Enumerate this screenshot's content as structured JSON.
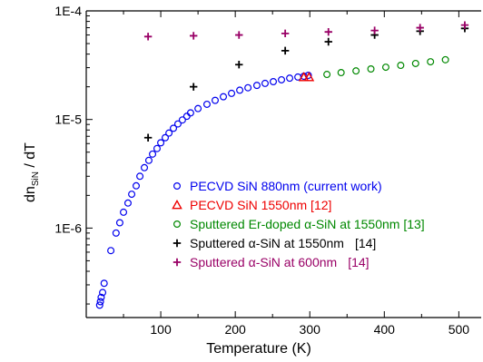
{
  "chart_data": {
    "type": "scatter",
    "title": "",
    "xlabel": "Temperature (K)",
    "ylabel_main": "dn",
    "ylabel_sub": "SiN",
    "ylabel_tail": " / dT",
    "xlim": [
      0,
      530
    ],
    "ylim": [
      1.5e-07,
      0.0001
    ],
    "yscale": "log",
    "x_ticks": [
      100,
      200,
      300,
      400,
      500
    ],
    "y_ticks": [
      {
        "value": 1e-06,
        "label": "1E-6"
      },
      {
        "value": 1e-05,
        "label": "1E-5"
      },
      {
        "value": 0.0001,
        "label": "1E-4"
      }
    ],
    "grid": false,
    "legend_position": "center-right",
    "series": [
      {
        "name": "PECVD SiN 880nm (current work)",
        "marker": "circle",
        "color": "#0000ee",
        "points": [
          [
            18,
            1.95e-07
          ],
          [
            19,
            2.1e-07
          ],
          [
            20,
            2.3e-07
          ],
          [
            22,
            2.55e-07
          ],
          [
            24,
            3.1e-07
          ],
          [
            33,
            6.2e-07
          ],
          [
            40,
            9e-07
          ],
          [
            45,
            1.12e-06
          ],
          [
            50,
            1.4e-06
          ],
          [
            56,
            1.7e-06
          ],
          [
            61,
            2.05e-06
          ],
          [
            67,
            2.45e-06
          ],
          [
            72,
            3e-06
          ],
          [
            78,
            3.6e-06
          ],
          [
            84,
            4.2e-06
          ],
          [
            89,
            4.8e-06
          ],
          [
            95,
            5.4e-06
          ],
          [
            100,
            6.1e-06
          ],
          [
            106,
            6.8e-06
          ],
          [
            111,
            7.5e-06
          ],
          [
            117,
            8.3e-06
          ],
          [
            123,
            9.1e-06
          ],
          [
            129,
            9.9e-06
          ],
          [
            135,
            1.07e-05
          ],
          [
            140,
            1.15e-05
          ],
          [
            150,
            1.26e-05
          ],
          [
            162,
            1.38e-05
          ],
          [
            173,
            1.5e-05
          ],
          [
            184,
            1.62e-05
          ],
          [
            195,
            1.74e-05
          ],
          [
            206,
            1.86e-05
          ],
          [
            217,
            1.96e-05
          ],
          [
            229,
            2.06e-05
          ],
          [
            240,
            2.15e-05
          ],
          [
            251,
            2.23e-05
          ],
          [
            262,
            2.32e-05
          ],
          [
            273,
            2.4e-05
          ],
          [
            284,
            2.46e-05
          ],
          [
            292,
            2.5e-05
          ],
          [
            298,
            2.55e-05
          ]
        ]
      },
      {
        "name": "PECVD SiN 1550nm [12]",
        "marker": "triangle",
        "color": "#ee0000",
        "points": [
          [
            292,
            2.45e-05
          ],
          [
            299,
            2.45e-05
          ]
        ]
      },
      {
        "name": "Sputtered Er-doped α-SiN at 1550nm  [13]",
        "marker": "circle",
        "color": "#008800",
        "points": [
          [
            323,
            2.6e-05
          ],
          [
            342,
            2.7e-05
          ],
          [
            362,
            2.8e-05
          ],
          [
            382,
            2.92e-05
          ],
          [
            402,
            3.03e-05
          ],
          [
            422,
            3.15e-05
          ],
          [
            442,
            3.28e-05
          ],
          [
            462,
            3.4e-05
          ],
          [
            482,
            3.55e-05
          ]
        ]
      },
      {
        "name": "Sputtered α-SiN at 1550nm",
        "ref": "[14]",
        "marker": "plus",
        "color": "#000000",
        "points": [
          [
            83,
            6.8e-06
          ],
          [
            144,
            2e-05
          ],
          [
            205,
            3.2e-05
          ],
          [
            267,
            4.3e-05
          ],
          [
            325,
            5.2e-05
          ],
          [
            387,
            6e-05
          ],
          [
            448,
            6.5e-05
          ],
          [
            508,
            6.9e-05
          ]
        ]
      },
      {
        "name": "Sputtered α-SiN at 600nm",
        "ref": "[14]",
        "marker": "plus",
        "color": "#990066",
        "points": [
          [
            83,
            5.8e-05
          ],
          [
            144,
            5.9e-05
          ],
          [
            205,
            6e-05
          ],
          [
            267,
            6.2e-05
          ],
          [
            325,
            6.4e-05
          ],
          [
            387,
            6.6e-05
          ],
          [
            448,
            7e-05
          ],
          [
            508,
            7.4e-05
          ]
        ]
      }
    ]
  }
}
